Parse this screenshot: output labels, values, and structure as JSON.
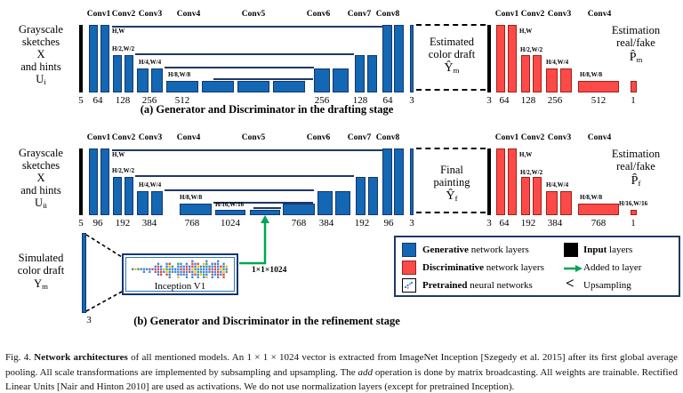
{
  "row1": {
    "left_label": {
      "lines": [
        "Grayscale",
        "sketches",
        "X",
        "and hints"
      ],
      "var_base": "U",
      "var_sub": "i"
    },
    "gen": {
      "conv_labels": [
        "Conv1",
        "Conv2",
        "Conv3",
        "Conv4",
        "Conv5",
        "Conv6",
        "Conv7",
        "Conv8"
      ],
      "scale_labels": [
        "H,W",
        "H/2,W/2",
        "H/4,W/4",
        "H/8,W/8"
      ],
      "channels": [
        "5",
        "64",
        "128",
        "256",
        "512",
        "256",
        "128",
        "64",
        "3"
      ]
    },
    "draft_box": {
      "lines": [
        "Estimated",
        "color draft"
      ],
      "symbol": "Ŷ",
      "symbol_sub": "m"
    },
    "disc": {
      "conv_labels": [
        "Conv1",
        "Conv2",
        "Conv3",
        "Conv4"
      ],
      "scale_labels": [
        "H,W",
        "H/2,W/2",
        "H/4,W/4",
        "H/8,W/8"
      ],
      "channels": [
        "3",
        "64",
        "128",
        "256",
        "512",
        "1"
      ],
      "estimation_lines": [
        "Estimation",
        "real/fake"
      ],
      "symbol": "P̂",
      "symbol_sub": "m"
    },
    "caption": "(a) Generator and Discriminator in the drafting stage"
  },
  "row2": {
    "left_label": {
      "lines": [
        "Grayscale",
        "sketches",
        "X",
        "and hints"
      ],
      "var_base": "U",
      "var_sub": "ii"
    },
    "gen": {
      "conv_labels": [
        "Conv1",
        "Conv2",
        "Conv3",
        "Conv4",
        "Conv5",
        "Conv6",
        "Conv7",
        "Conv8"
      ],
      "scale_labels": [
        "H,W",
        "H/2,W/2",
        "H/4,W/4",
        "H/8,W/8",
        "H/16,W/16"
      ],
      "channels": [
        "5",
        "96",
        "192",
        "384",
        "768",
        "1024",
        "768",
        "384",
        "192",
        "96",
        "3"
      ]
    },
    "draft_box": {
      "lines": [
        "Final",
        "painting"
      ],
      "symbol": "Ŷ",
      "symbol_sub": "f"
    },
    "disc": {
      "conv_labels": [
        "Conv1",
        "Conv2",
        "Conv3",
        "Conv4"
      ],
      "scale_labels": [
        "H,W",
        "H/2,W/2",
        "H/4,W/4",
        "H/8,W/8",
        "H/16,W/16"
      ],
      "channels": [
        "3",
        "64",
        "192",
        "384",
        "768",
        "1"
      ],
      "estimation_lines": [
        "Estimation",
        "real/fake"
      ],
      "symbol": "P̂",
      "symbol_sub": "f"
    },
    "caption": "(b) Generator and Discriminator in the refinement stage"
  },
  "inception": {
    "left_lines": [
      "Simulated",
      "color draft"
    ],
    "var_base": "Y",
    "var_sub": "m",
    "input_channels": "3",
    "box_label": "Inception V1",
    "vector_label": "1×1×1024"
  },
  "legend": {
    "items": [
      {
        "bold": "Generative",
        "rest": " network layers"
      },
      {
        "bold": "Discriminative",
        "rest": " network layers"
      },
      {
        "bold": "Pretrained",
        "rest": " neural networks"
      },
      {
        "bold": "Input",
        "rest": " layers"
      },
      {
        "bold": "",
        "rest": "Added to layer"
      },
      {
        "bold": "",
        "rest": "Upsampling"
      }
    ],
    "upsampling_glyph": "<"
  },
  "caption": {
    "fig": "Fig. 4. ",
    "bold": "Network architectures",
    "part1": " of all mentioned models. An 1 × 1 × 1024 vector is extracted from ImageNet Inception [Szegedy et al. 2015] after its first global average pooling. All scale transformations are implemented by subsampling and upsampling. The ",
    "italic": "add",
    "part2": " operation is done by matrix broadcasting. All weights are trainable. Rectified Linear Units [Nair and Hinton 2010] are used as activations. We do not use normalization layers (except for pretrained Inception)."
  },
  "colors": {
    "generative_blue": "#1467b2",
    "discriminative_red": "#fb4a47",
    "input_black": "#000000",
    "added_green": "#00a651",
    "line_navy": "#1f3864"
  }
}
